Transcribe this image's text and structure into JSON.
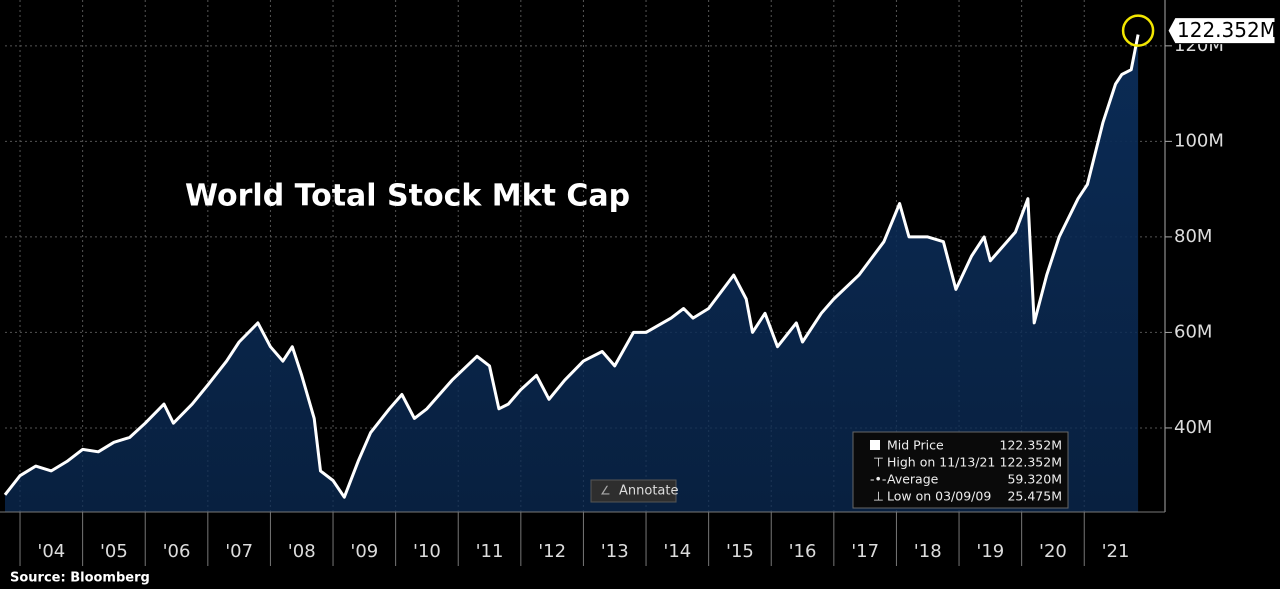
{
  "chart_data": {
    "type": "area",
    "title": "World Total Stock Mkt Cap",
    "source": "Source: Bloomberg",
    "button": "Annotate",
    "last_value_label": "122.352M",
    "x": [
      2003.76,
      2004.0,
      2004.25,
      2004.5,
      2004.75,
      2005.0,
      2005.25,
      2005.5,
      2005.75,
      2006.0,
      2006.3,
      2006.45,
      2006.75,
      2007.0,
      2007.3,
      2007.5,
      2007.8,
      2008.0,
      2008.2,
      2008.35,
      2008.5,
      2008.7,
      2008.8,
      2009.0,
      2009.18,
      2009.4,
      2009.6,
      2009.9,
      2010.1,
      2010.3,
      2010.5,
      2010.9,
      2011.3,
      2011.5,
      2011.65,
      2011.8,
      2012.0,
      2012.25,
      2012.45,
      2012.7,
      2013.0,
      2013.3,
      2013.5,
      2013.8,
      2014.0,
      2014.4,
      2014.6,
      2014.75,
      2015.0,
      2015.4,
      2015.6,
      2015.7,
      2015.9,
      2016.1,
      2016.4,
      2016.5,
      2016.8,
      2017.0,
      2017.4,
      2017.8,
      2018.05,
      2018.2,
      2018.5,
      2018.75,
      2018.95,
      2019.2,
      2019.4,
      2019.5,
      2019.9,
      2020.1,
      2020.2,
      2020.4,
      2020.6,
      2020.9,
      2021.05,
      2021.3,
      2021.5,
      2021.6,
      2021.75,
      2021.86
    ],
    "series": [
      {
        "name": "Mid Price",
        "color": "#ffffff",
        "fill": "#0b2b55",
        "values": [
          26,
          30,
          32,
          31,
          33,
          35.5,
          35,
          37,
          38,
          41,
          45,
          41,
          45,
          49,
          54,
          58,
          62,
          57,
          54,
          57,
          51,
          42,
          31,
          29,
          25.5,
          33,
          39,
          44,
          47,
          42,
          44,
          50,
          55,
          53,
          44,
          45,
          48,
          51,
          46,
          50,
          54,
          56,
          53,
          60,
          60,
          63,
          65,
          63,
          65,
          72,
          67,
          60,
          64,
          57,
          62,
          58,
          64,
          67,
          72,
          79,
          87,
          80,
          80,
          79,
          69,
          76,
          80,
          75,
          81,
          88,
          62,
          72,
          80,
          88,
          91,
          104,
          112,
          114,
          115,
          122.352
        ]
      }
    ],
    "xlim": [
      2003.76,
      2022.29
    ],
    "xticks": [
      {
        "value": 2004,
        "label": "'04"
      },
      {
        "value": 2005,
        "label": "'05"
      },
      {
        "value": 2006,
        "label": "'06"
      },
      {
        "value": 2007,
        "label": "'07"
      },
      {
        "value": 2008,
        "label": "'08"
      },
      {
        "value": 2009,
        "label": "'09"
      },
      {
        "value": 2010,
        "label": "'10"
      },
      {
        "value": 2011,
        "label": "'11"
      },
      {
        "value": 2012,
        "label": "'12"
      },
      {
        "value": 2013,
        "label": "'13"
      },
      {
        "value": 2014,
        "label": "'14"
      },
      {
        "value": 2015,
        "label": "'15"
      },
      {
        "value": 2016,
        "label": "'16"
      },
      {
        "value": 2017,
        "label": "'17"
      },
      {
        "value": 2018,
        "label": "'18"
      },
      {
        "value": 2019,
        "label": "'19"
      },
      {
        "value": 2020,
        "label": "'20"
      },
      {
        "value": 2021,
        "label": "'21"
      }
    ],
    "ylim": [
      22.4,
      129.6
    ],
    "yticks": [
      {
        "value": 40,
        "label": "40M"
      },
      {
        "value": 60,
        "label": "60M"
      },
      {
        "value": 80,
        "label": "80M"
      },
      {
        "value": 100,
        "label": "100M"
      },
      {
        "value": 120,
        "label": "120M"
      }
    ],
    "grid": true,
    "info_box": {
      "rows": [
        {
          "label": "Mid Price",
          "value": "122.352M"
        },
        {
          "label": "High on 11/13/21",
          "value": "122.352M"
        },
        {
          "label": "Average",
          "value": "59.320M"
        },
        {
          "label": "Low on 03/09/09",
          "value": "25.475M"
        }
      ]
    }
  }
}
